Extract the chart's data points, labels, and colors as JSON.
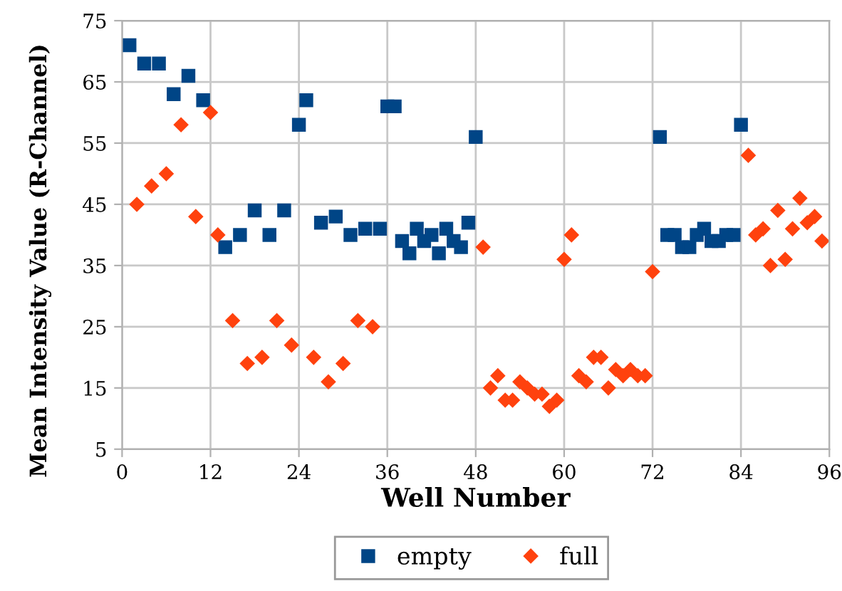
{
  "chart_data": {
    "type": "scatter",
    "xlabel": "Well Number",
    "ylabel": "Mean Intensity Value (R-Channel)",
    "xlim": [
      0,
      96
    ],
    "xticks": [
      0,
      12,
      24,
      36,
      48,
      60,
      72,
      84,
      96
    ],
    "ylim": [
      5,
      75
    ],
    "yticks": [
      5,
      15,
      25,
      35,
      45,
      55,
      65,
      75
    ],
    "grid": true,
    "legend": "bottom",
    "series": [
      {
        "name": "empty",
        "color": "#004586",
        "marker": "square",
        "x": [
          1,
          3,
          5,
          7,
          9,
          11,
          14,
          16,
          18,
          20,
          22,
          24,
          25,
          27,
          29,
          31,
          33,
          35,
          36,
          37,
          38,
          39,
          40,
          41,
          42,
          43,
          44,
          45,
          46,
          47,
          48,
          73,
          74,
          75,
          76,
          77,
          78,
          79,
          80,
          81,
          82,
          83,
          84
        ],
        "values": [
          71,
          68,
          68,
          63,
          66,
          62,
          38,
          40,
          44,
          40,
          44,
          58,
          62,
          42,
          43,
          40,
          41,
          41,
          61,
          61,
          39,
          37,
          41,
          39,
          40,
          37,
          41,
          39,
          38,
          42,
          56,
          56,
          40,
          40,
          38,
          38,
          40,
          41,
          39,
          39,
          40,
          40,
          58
        ]
      },
      {
        "name": "full",
        "color": "#ff420e",
        "marker": "diamond",
        "x": [
          2,
          4,
          6,
          8,
          10,
          12,
          13,
          15,
          17,
          19,
          21,
          23,
          26,
          28,
          30,
          32,
          34,
          49,
          50,
          51,
          52,
          53,
          54,
          55,
          56,
          57,
          58,
          59,
          60,
          61,
          62,
          63,
          64,
          65,
          66,
          67,
          68,
          69,
          70,
          71,
          72,
          85,
          86,
          87,
          88,
          89,
          90,
          91,
          92,
          93,
          94,
          95
        ],
        "values": [
          45,
          48,
          50,
          58,
          43,
          60,
          40,
          26,
          19,
          20,
          26,
          22,
          20,
          16,
          19,
          26,
          25,
          38,
          15,
          17,
          13,
          13,
          16,
          15,
          14,
          14,
          12,
          13,
          36,
          40,
          17,
          16,
          20,
          20,
          15,
          18,
          17,
          18,
          17,
          17,
          34,
          53,
          40,
          41,
          35,
          44,
          36,
          41,
          46,
          42,
          43,
          39
        ]
      }
    ]
  }
}
